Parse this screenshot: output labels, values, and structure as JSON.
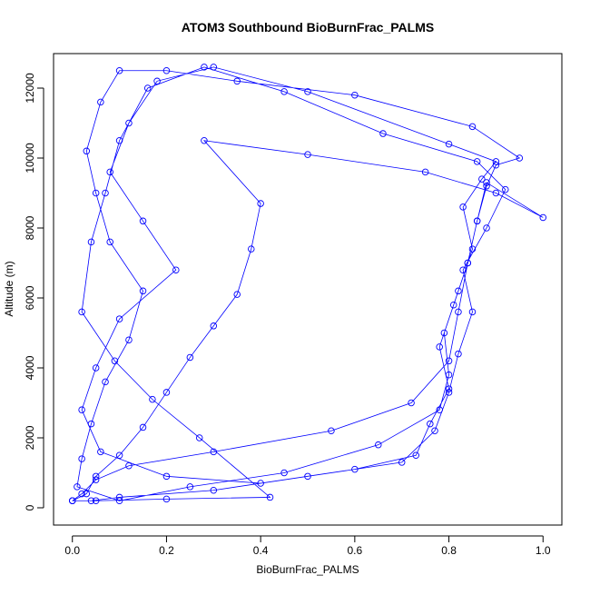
{
  "chart_data": {
    "type": "line",
    "title": "ATOM3 Southbound BioBurnFrac_PALMS",
    "x_label": "BioBurnFrac_PALMS",
    "y_label": "Altitude (m)",
    "x": [
      0.0,
      0.02,
      0.05,
      0.12,
      0.3,
      0.55,
      0.72,
      0.8,
      0.82,
      0.84,
      0.86,
      0.88,
      0.9,
      0.95,
      0.85,
      0.6,
      0.35,
      0.2,
      0.1,
      0.06,
      0.03,
      0.05,
      0.08,
      0.15,
      0.12,
      0.07,
      0.04,
      0.02,
      0.01,
      0.1,
      0.25,
      0.45,
      0.65,
      0.78,
      0.8,
      0.79,
      0.82,
      0.85,
      0.83,
      0.87,
      0.9,
      0.8,
      0.5,
      0.3,
      0.18,
      0.12,
      0.08,
      0.15,
      0.22,
      0.1,
      0.05,
      0.02,
      0.06,
      0.2,
      0.4,
      0.6,
      0.73,
      0.76,
      0.8,
      0.78,
      0.81,
      0.84,
      0.86,
      0.88,
      1.0,
      0.9,
      0.75,
      0.5,
      0.28,
      0.4,
      0.38,
      0.35,
      0.3,
      0.25,
      0.2,
      0.15,
      0.1,
      0.05,
      0.03,
      0.0,
      0.04,
      0.1,
      0.3,
      0.5,
      0.7,
      0.77,
      0.8,
      0.82,
      0.85,
      0.83,
      0.88,
      0.92,
      0.86,
      0.66,
      0.45,
      0.28,
      0.16,
      0.1,
      0.07,
      0.04,
      0.02,
      0.09,
      0.17,
      0.27,
      0.42,
      0.2,
      0.05,
      0.0
    ],
    "series": [
      {
        "color": "#0000ff",
        "values": [
          200,
          400,
          800,
          1200,
          1600,
          2200,
          3000,
          4200,
          5600,
          7000,
          8200,
          9200,
          9800,
          10000,
          10900,
          11800,
          12200,
          12500,
          12500,
          11600,
          10200,
          9000,
          7600,
          6200,
          4800,
          3600,
          2400,
          1400,
          600,
          200,
          600,
          1000,
          1800,
          2800,
          3800,
          5000,
          6200,
          7400,
          8600,
          9400,
          9900,
          10400,
          11900,
          12600,
          12200,
          11000,
          9600,
          8200,
          6800,
          5400,
          4000,
          2800,
          1600,
          900,
          700,
          1100,
          1500,
          2400,
          3400,
          4600,
          5800,
          7000,
          8200,
          9300,
          8300,
          9000,
          9600,
          10100,
          10500,
          8700,
          7400,
          6100,
          5200,
          4300,
          3300,
          2300,
          1500,
          900,
          400,
          200,
          200,
          300,
          500,
          900,
          1300,
          2200,
          3300,
          4400,
          5600,
          6800,
          8000,
          9100,
          9900,
          10700,
          11900,
          12600,
          12000,
          10500,
          9000,
          7600,
          5600,
          4200,
          3100,
          2000,
          300,
          250,
          200,
          200
        ]
      }
    ],
    "xlim": [
      -0.04,
      1.04
    ],
    "ylim": [
      -494,
      12987
    ],
    "xticks": [
      {
        "value": 0,
        "label": "0.0"
      },
      0.2,
      0.4,
      0.6,
      0.8,
      {
        "value": 1,
        "label": "1.0"
      }
    ],
    "yticks": [
      0,
      2000,
      4000,
      6000,
      8000,
      10000,
      12000
    ]
  }
}
